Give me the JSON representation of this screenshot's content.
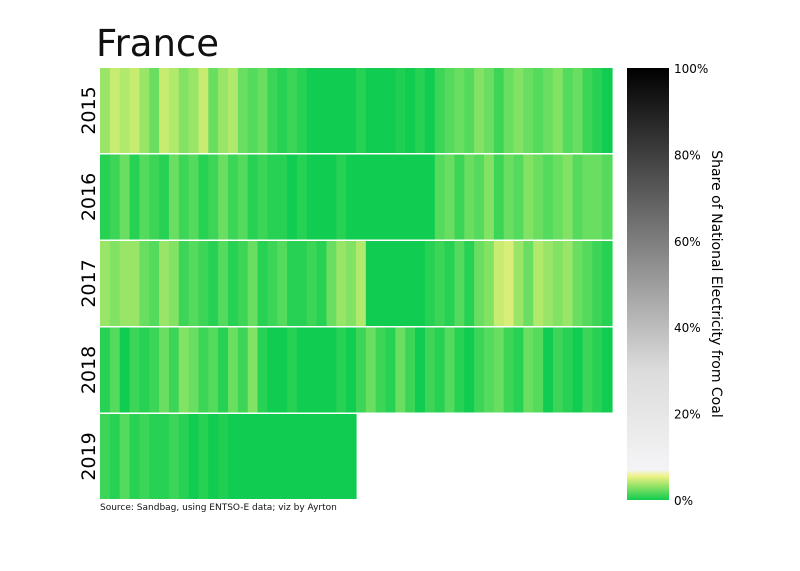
{
  "chart_data": {
    "type": "heatmap",
    "title": "France",
    "source": "Source: Sandbag, using ENTSO-E data; viz by Ayrton",
    "colorbar_label": "Share of National Electricity from Coal",
    "colorbar_ticks": [
      "0%",
      "20%",
      "40%",
      "60%",
      "80%",
      "100%"
    ],
    "colorbar_range": [
      0,
      100
    ],
    "units": "% share, approx. weekly bins",
    "colors": {
      "zero": "#10cc50",
      "low": "#6ade60",
      "mid": "#c8ec70",
      "five": "#e8f080",
      "light": "#f4f4f6",
      "full": "#000000"
    },
    "rows": [
      {
        "year": "2015",
        "values": [
          3,
          4,
          3.5,
          4,
          3,
          2,
          4,
          3.5,
          2.5,
          3,
          4,
          2,
          3,
          3.5,
          2,
          1.5,
          2,
          1,
          0.5,
          1,
          0.5,
          0,
          0,
          0,
          0,
          0,
          0.5,
          0,
          0,
          0,
          0.3,
          0,
          0.5,
          0,
          1,
          1.5,
          2,
          1.5,
          2.5,
          2,
          1,
          2,
          2.5,
          2,
          1.5,
          2,
          2.5,
          1.5,
          2,
          1,
          0.5,
          0
        ]
      },
      {
        "year": "2016",
        "values": [
          0.5,
          1,
          2,
          0.5,
          1.5,
          1,
          0.5,
          2,
          1,
          1.5,
          0.5,
          1,
          2,
          1,
          1.5,
          0.5,
          1,
          0.5,
          0.5,
          0,
          0.5,
          0,
          0,
          0,
          0.5,
          0,
          0,
          0,
          0,
          0,
          0,
          0,
          0,
          0,
          1.5,
          2,
          1,
          2,
          1.5,
          2.5,
          1,
          2,
          1.5,
          2.5,
          2,
          1.5,
          2,
          2.5,
          1.5,
          2,
          2,
          1.5
        ]
      },
      {
        "year": "2017",
        "values": [
          3,
          2.5,
          3,
          3,
          2,
          1.5,
          3,
          2.5,
          1,
          1.5,
          1,
          0.5,
          1.5,
          0.5,
          1,
          2,
          0.5,
          1,
          1.5,
          0.5,
          0.5,
          1,
          0.5,
          2,
          3,
          2.5,
          3.5,
          0,
          0,
          0,
          0,
          0,
          0,
          0.5,
          1,
          0.5,
          1.5,
          0.5,
          2,
          2.5,
          4,
          4.5,
          3,
          2,
          3.5,
          3,
          2.5,
          3,
          2,
          1.5,
          1,
          0.5
        ]
      },
      {
        "year": "2018",
        "values": [
          0.5,
          1.5,
          0,
          1,
          0.5,
          1,
          2,
          1,
          2.5,
          2,
          1,
          1.5,
          0.5,
          2,
          1,
          2.5,
          0.5,
          0,
          0,
          0.5,
          0,
          0,
          0,
          0,
          0.5,
          0,
          1,
          2,
          1,
          0.5,
          2,
          1,
          0,
          1,
          0.5,
          1.5,
          0.5,
          0,
          1,
          1.5,
          2,
          1,
          0.5,
          2,
          1.5,
          0,
          1,
          0.5,
          0,
          1,
          0.5,
          0
        ]
      },
      {
        "year": "2019",
        "values": [
          1,
          0.5,
          1.5,
          0.5,
          1,
          0.5,
          0.5,
          1,
          0.5,
          0,
          0.5,
          0,
          0.3,
          0,
          0,
          0,
          0,
          0,
          0,
          0,
          0,
          0,
          0,
          0,
          0,
          0
        ]
      }
    ]
  }
}
